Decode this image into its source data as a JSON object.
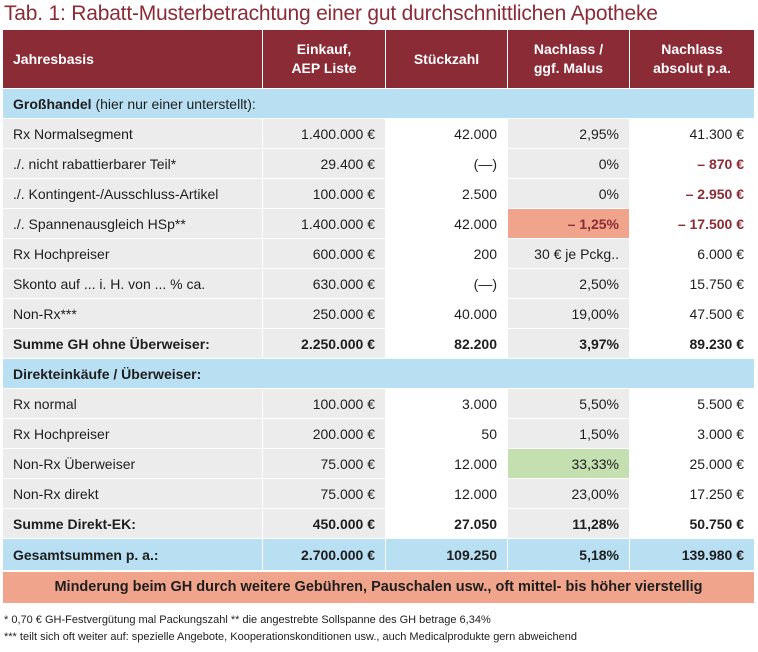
{
  "title": "Tab. 1: Rabatt-Musterbetrachtung einer gut durchschnittlichen Apotheke",
  "header": {
    "c0": "Jahresbasis",
    "c1_l1": "Einkauf,",
    "c1_l2": "AEP Liste",
    "c2": "Stückzahl",
    "c3_l1": "Nachlass /",
    "c3_l2": "ggf. Malus",
    "c4_l1": "Nachlass",
    "c4_l2": "absolut p.a."
  },
  "section1": {
    "bold": "Großhandel",
    "rest": " (hier nur einer unterstellt):"
  },
  "rows1": [
    [
      "Rx Normalsegment",
      "1.400.000 €",
      "42.000",
      "2,95%",
      "41.300 €"
    ],
    [
      "./. nicht rabattierbarer Teil*",
      "29.400 €",
      "(—)",
      "0%",
      "– 870 €"
    ],
    [
      "./. Kontingent-/Ausschluss-Artikel",
      "100.000 €",
      "2.500",
      "0%",
      "– 2.950 €"
    ],
    [
      "./. Spannenausgleich HSp**",
      "1.400.000 €",
      "42.000",
      "– 1,25%",
      "– 17.500 €"
    ],
    [
      "Rx Hochpreiser",
      "600.000 €",
      "200",
      "30 € je Pckg..",
      "6.000 €"
    ],
    [
      "Skonto auf ... i. H. von ... % ca.",
      "630.000 €",
      "(—)",
      "2,50%",
      "15.750 €"
    ],
    [
      "Non-Rx***",
      "250.000 €",
      "40.000",
      "19,00%",
      "47.500 €"
    ]
  ],
  "total1": [
    "Summe GH ohne Überweiser:",
    "2.250.000 €",
    "82.200",
    "3,97%",
    "89.230 €"
  ],
  "section2": "Direkteinkäufe / Überweiser:",
  "rows2": [
    [
      "Rx normal",
      "100.000 €",
      "3.000",
      "5,50%",
      "5.500 €"
    ],
    [
      "Rx Hochpreiser",
      "200.000 €",
      "50",
      "1,50%",
      "3.000 €"
    ],
    [
      "Non-Rx Überweiser",
      "75.000 €",
      "12.000",
      "33,33%",
      "25.000 €"
    ],
    [
      "Non-Rx direkt",
      "75.000 €",
      "12.000",
      "23,00%",
      "17.250 €"
    ]
  ],
  "total2": [
    "Summe Direkt-EK:",
    "450.000 €",
    "27.050",
    "11,28%",
    "50.750 €"
  ],
  "grand": [
    "Gesamtsummen p. a.:",
    "2.700.000 €",
    "109.250",
    "5,18%",
    "139.980 €"
  ],
  "note": "Minderung beim GH durch weitere Gebühren, Pauschalen usw., oft mittel- bis höher vierstellig",
  "footnote1": "* 0,70 € GH-Festvergütung mal Packungszahl  ** die angestrebte Sollspanne des GH betrage 6,34%",
  "footnote2": "*** teilt sich oft weiter auf: spezielle Angebote, Kooperationskonditionen usw., auch Medicalprodukte gern abweichend",
  "colors": {
    "header": "#8b2b36",
    "section": "#b9dff3",
    "stripe": "#ececec",
    "note": "#f0a48b",
    "positive_highlight": "#c5e0b0",
    "negative_text": "#8b2b36"
  }
}
